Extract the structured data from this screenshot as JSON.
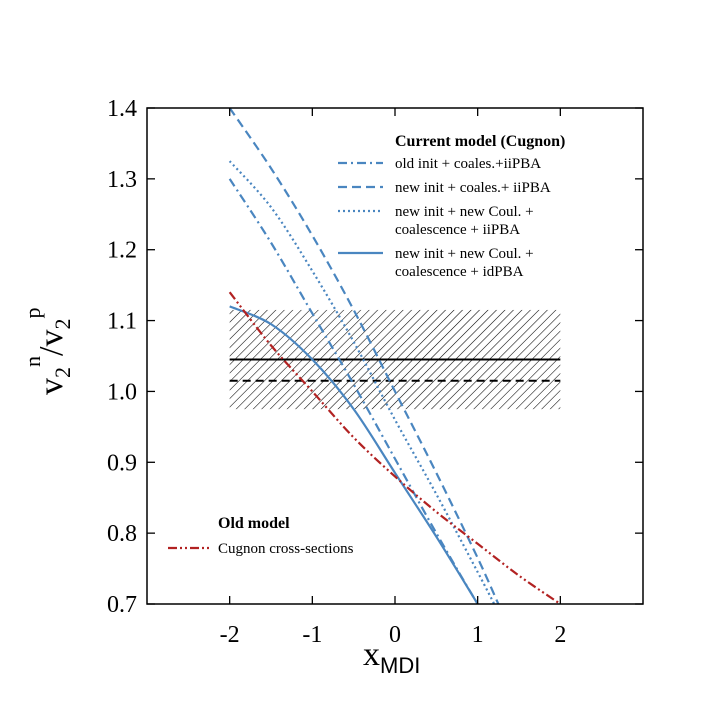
{
  "chart_data": {
    "type": "line",
    "xlabel": "x",
    "xlabel_sub": "MDI",
    "ylabel_parts": [
      "v",
      "2",
      "n",
      "/v",
      "2",
      "p"
    ],
    "xlim": [
      -3,
      3
    ],
    "ylim": [
      0.7,
      1.4
    ],
    "xticks": [
      -2,
      -1,
      0,
      1,
      2
    ],
    "xtick_labels": [
      "-2",
      "-1",
      "0",
      "1",
      "2"
    ],
    "yticks": [
      0.7,
      0.8,
      0.9,
      1.0,
      1.1,
      1.2,
      1.3,
      1.4
    ],
    "ytick_labels": [
      "0.7",
      "0.8",
      "0.9",
      "1.0",
      "1.1",
      "1.2",
      "1.3",
      "1.4"
    ],
    "grid": false,
    "legend_placement": "top-right",
    "experimental_band": {
      "x_range": [
        -2,
        2
      ],
      "y_range": [
        0.975,
        1.115
      ],
      "central_value": 1.045,
      "alternative_value": 1.015
    },
    "legend_groups": [
      {
        "heading": "Current model (Cugnon)",
        "position": "top-right"
      },
      {
        "heading": "Old model",
        "position": "bottom-left"
      }
    ],
    "series": [
      {
        "name_lines": [
          "old init + coales.+iiPBA"
        ],
        "group": 0,
        "style": "dashdot",
        "color": "#4a86c0",
        "x": [
          -2,
          -1.5,
          -1,
          -0.5,
          0,
          0.5,
          1,
          1.08
        ],
        "y": [
          1.3,
          1.21,
          1.11,
          1.01,
          0.905,
          0.8,
          0.7,
          0.69
        ]
      },
      {
        "name_lines": [
          "new init + coales.+ iiPBA"
        ],
        "group": 0,
        "style": "dashed",
        "color": "#4a86c0",
        "x": [
          -2,
          -1.5,
          -1,
          -0.5,
          0,
          0.5,
          1,
          1.25
        ],
        "y": [
          1.4,
          1.315,
          1.22,
          1.115,
          1.0,
          0.885,
          0.765,
          0.7
        ]
      },
      {
        "name_lines": [
          "new init + new Coul. +",
          "coalescence + iiPBA"
        ],
        "group": 0,
        "style": "dotted",
        "color": "#4a86c0",
        "x": [
          -2,
          -1.5,
          -1,
          -0.5,
          0,
          0.5,
          1,
          1.2
        ],
        "y": [
          1.325,
          1.26,
          1.17,
          1.07,
          0.96,
          0.855,
          0.745,
          0.7
        ]
      },
      {
        "name_lines": [
          "new init + new Coul. +",
          "coalescence + idPBA"
        ],
        "group": 0,
        "style": "solid",
        "color": "#4a86c0",
        "x": [
          -2,
          -1.5,
          -1,
          -0.5,
          0,
          0.5,
          1
        ],
        "y": [
          1.12,
          1.095,
          1.045,
          0.975,
          0.885,
          0.795,
          0.7
        ]
      },
      {
        "name_lines": [
          "Cugnon cross-sections"
        ],
        "group": 1,
        "style": "dashdotdot",
        "color": "#b22222",
        "x": [
          -2,
          -1.5,
          -1,
          -0.5,
          0,
          0.5,
          1,
          1.5,
          2
        ],
        "y": [
          1.14,
          1.065,
          1.0,
          0.935,
          0.88,
          0.83,
          0.785,
          0.74,
          0.7
        ]
      }
    ]
  }
}
